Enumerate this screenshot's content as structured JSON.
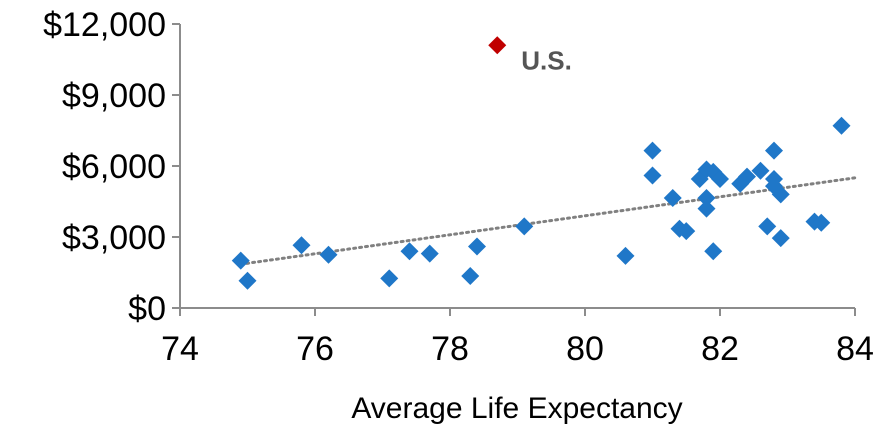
{
  "chart_data": {
    "type": "scatter",
    "title": "",
    "xlabel": "Average Life Expectancy",
    "ylabel": "",
    "xlim": [
      74,
      84
    ],
    "ylim": [
      0,
      12000
    ],
    "x_ticks": [
      74,
      76,
      78,
      80,
      82,
      84
    ],
    "x_tick_labels": [
      "74",
      "76",
      "78",
      "80",
      "82",
      "84"
    ],
    "y_ticks": [
      0,
      3000,
      6000,
      9000,
      12000
    ],
    "y_tick_labels": [
      "$0",
      "$3,000",
      "$6,000",
      "$9,000",
      "$12,000"
    ],
    "grid": false,
    "legend": "none",
    "colors": {
      "points": "#1f77c8",
      "highlight": "#c00000",
      "trend": "#808080"
    },
    "series": [
      {
        "marker": "diamond",
        "points": [
          {
            "x": 74.9,
            "y": 2000
          },
          {
            "x": 75.0,
            "y": 1150
          },
          {
            "x": 75.8,
            "y": 2650
          },
          {
            "x": 76.2,
            "y": 2250
          },
          {
            "x": 77.1,
            "y": 1250
          },
          {
            "x": 77.4,
            "y": 2400
          },
          {
            "x": 77.7,
            "y": 2300
          },
          {
            "x": 78.3,
            "y": 1350
          },
          {
            "x": 78.4,
            "y": 2600
          },
          {
            "x": 79.1,
            "y": 3450
          },
          {
            "x": 80.6,
            "y": 2200
          },
          {
            "x": 81.0,
            "y": 6650
          },
          {
            "x": 81.0,
            "y": 5600
          },
          {
            "x": 81.3,
            "y": 4650
          },
          {
            "x": 81.4,
            "y": 3350
          },
          {
            "x": 81.5,
            "y": 3250
          },
          {
            "x": 81.7,
            "y": 5450
          },
          {
            "x": 81.8,
            "y": 5850
          },
          {
            "x": 81.8,
            "y": 4650
          },
          {
            "x": 81.8,
            "y": 4200
          },
          {
            "x": 81.9,
            "y": 5750
          },
          {
            "x": 81.9,
            "y": 2400
          },
          {
            "x": 82.0,
            "y": 5450
          },
          {
            "x": 82.3,
            "y": 5250
          },
          {
            "x": 82.4,
            "y": 5550
          },
          {
            "x": 82.6,
            "y": 5800
          },
          {
            "x": 82.7,
            "y": 3450
          },
          {
            "x": 82.8,
            "y": 6650
          },
          {
            "x": 82.8,
            "y": 5450
          },
          {
            "x": 82.8,
            "y": 5150
          },
          {
            "x": 82.9,
            "y": 4800
          },
          {
            "x": 82.9,
            "y": 2950
          },
          {
            "x": 83.4,
            "y": 3650
          },
          {
            "x": 83.5,
            "y": 3600
          },
          {
            "x": 83.8,
            "y": 7700
          }
        ]
      },
      {
        "marker": "diamond",
        "points": [
          {
            "x": 78.7,
            "y": 11100
          }
        ]
      }
    ],
    "trendline": {
      "style": "dotted",
      "from": {
        "x": 74.9,
        "y": 1850
      },
      "to": {
        "x": 84.0,
        "y": 5500
      }
    },
    "annotations": [
      {
        "text": "U.S.",
        "x": 78.7,
        "y": 11100
      }
    ]
  }
}
